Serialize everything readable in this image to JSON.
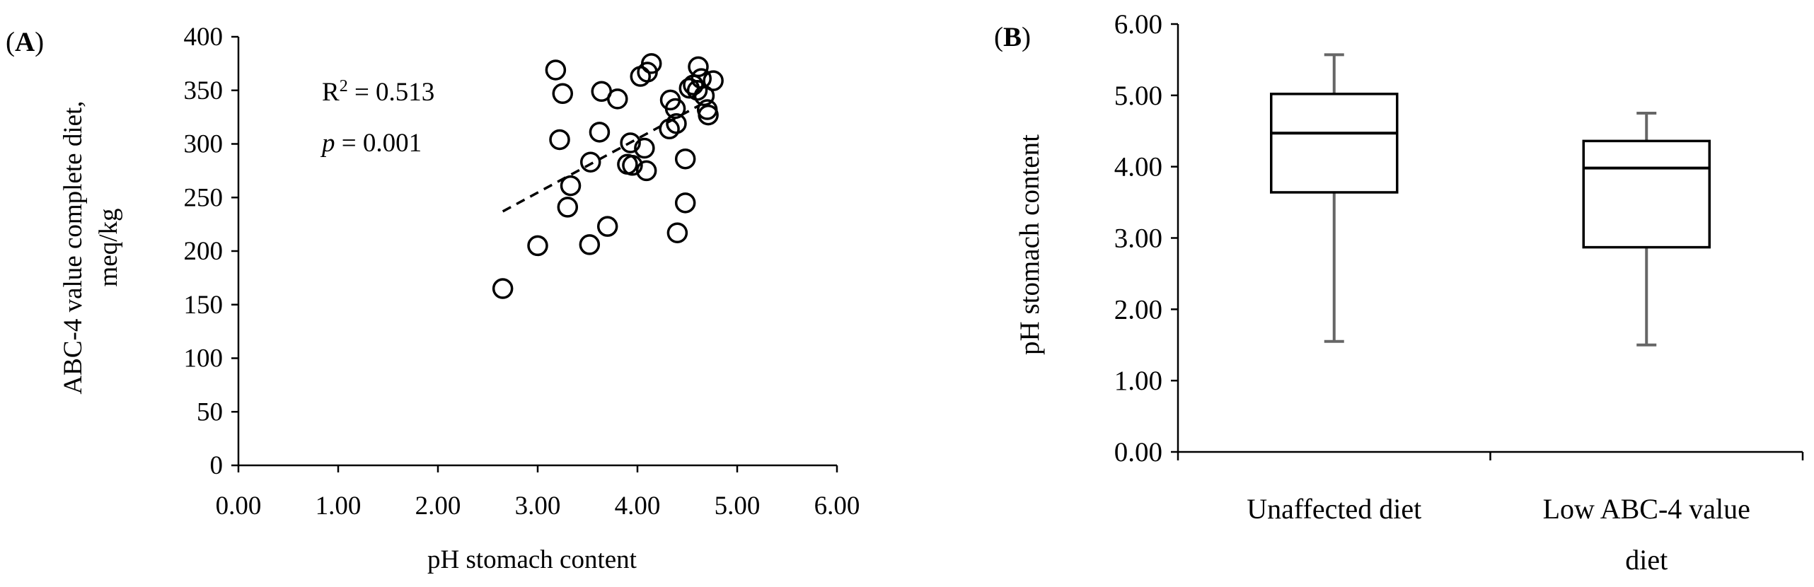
{
  "chart_data": [
    {
      "panel_label": "(A)",
      "type": "scatter",
      "xlabel": "pH stomach content",
      "ylabel_lines": [
        "ABC-4 value complete diet,",
        "meq/kg"
      ],
      "xlim": [
        0,
        6
      ],
      "ylim": [
        0,
        400
      ],
      "x_ticks": [
        "0.00",
        "1.00",
        "2.00",
        "3.00",
        "4.00",
        "5.00",
        "6.00"
      ],
      "y_ticks": [
        "0",
        "50",
        "100",
        "150",
        "200",
        "250",
        "300",
        "350",
        "400"
      ],
      "annotation": {
        "r2_label": "R",
        "r2_sup": "2",
        "r2_value": " = 0.513",
        "p_label": "p",
        "p_value": " = 0.001"
      },
      "trendline": {
        "style": "dashed",
        "x": [
          2.65,
          4.7
        ],
        "y": [
          237,
          340
        ]
      },
      "points": [
        {
          "x": 2.65,
          "y": 165
        },
        {
          "x": 3.0,
          "y": 205
        },
        {
          "x": 3.18,
          "y": 369
        },
        {
          "x": 3.22,
          "y": 304
        },
        {
          "x": 3.25,
          "y": 347
        },
        {
          "x": 3.3,
          "y": 241
        },
        {
          "x": 3.33,
          "y": 261
        },
        {
          "x": 3.52,
          "y": 206
        },
        {
          "x": 3.53,
          "y": 283
        },
        {
          "x": 3.62,
          "y": 311
        },
        {
          "x": 3.64,
          "y": 349
        },
        {
          "x": 3.7,
          "y": 223
        },
        {
          "x": 3.8,
          "y": 342
        },
        {
          "x": 3.9,
          "y": 281
        },
        {
          "x": 3.93,
          "y": 301
        },
        {
          "x": 3.95,
          "y": 280
        },
        {
          "x": 4.03,
          "y": 363
        },
        {
          "x": 4.07,
          "y": 296
        },
        {
          "x": 4.09,
          "y": 275
        },
        {
          "x": 4.1,
          "y": 367
        },
        {
          "x": 4.14,
          "y": 375
        },
        {
          "x": 4.32,
          "y": 314
        },
        {
          "x": 4.33,
          "y": 341
        },
        {
          "x": 4.38,
          "y": 333
        },
        {
          "x": 4.39,
          "y": 319
        },
        {
          "x": 4.4,
          "y": 217
        },
        {
          "x": 4.48,
          "y": 245
        },
        {
          "x": 4.48,
          "y": 286
        },
        {
          "x": 4.52,
          "y": 352
        },
        {
          "x": 4.56,
          "y": 355
        },
        {
          "x": 4.6,
          "y": 350
        },
        {
          "x": 4.61,
          "y": 372
        },
        {
          "x": 4.64,
          "y": 361
        },
        {
          "x": 4.67,
          "y": 345
        },
        {
          "x": 4.7,
          "y": 332
        },
        {
          "x": 4.71,
          "y": 327
        },
        {
          "x": 4.76,
          "y": 359
        }
      ]
    },
    {
      "panel_label": "(B)",
      "type": "box",
      "ylabel": "pH stomach content",
      "ylim": [
        0,
        6
      ],
      "y_ticks": [
        "0.00",
        "1.00",
        "2.00",
        "3.00",
        "4.00",
        "5.00",
        "6.00"
      ],
      "categories": [
        [
          "Unaffected diet"
        ],
        [
          "Low ABC-4 value",
          "diet"
        ]
      ],
      "boxes": [
        {
          "min": 1.55,
          "q1": 3.64,
          "median": 4.47,
          "q3": 5.02,
          "max": 5.57
        },
        {
          "min": 1.5,
          "q1": 2.87,
          "median": 3.98,
          "q3": 4.36,
          "max": 4.75
        }
      ],
      "whisker_color": "#666666"
    }
  ]
}
